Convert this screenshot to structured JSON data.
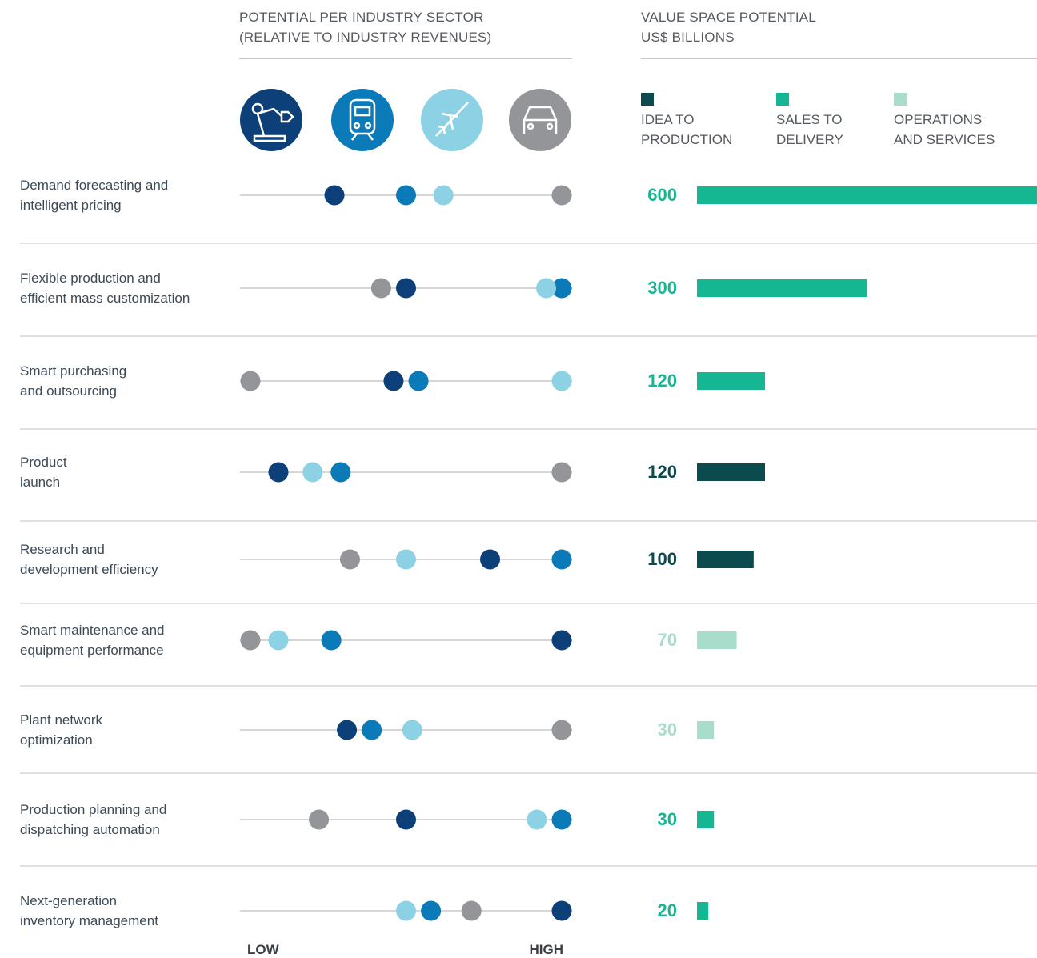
{
  "chart_data": [
    {
      "type": "dot",
      "title": "POTENTIAL PER INDUSTRY SECTOR\n(RELATIVE TO INDUSTRY REVENUES)",
      "categories": [
        "Demand forecasting and\nintelligent pricing",
        "Flexible production and\nefficient mass customization",
        "Smart purchasing\nand outsourcing",
        "Product\nlaunch",
        "Research and\ndevelopment efficiency",
        "Smart maintenance and\nequipment performance",
        "Plant network\noptimization",
        "Production planning and\ndispatching automation",
        "Next-generation\ninventory management"
      ],
      "series": [
        {
          "color": "#0d3f78",
          "values": [
            27,
            50,
            46,
            9,
            77,
            100,
            31,
            50,
            100
          ]
        },
        {
          "color": "#0a7ab8",
          "values": [
            50,
            100,
            54,
            29,
            100,
            26,
            39,
            100,
            58
          ]
        },
        {
          "color": "#8dd1e4",
          "values": [
            62,
            95,
            100,
            20,
            50,
            9,
            52,
            92,
            50
          ]
        },
        {
          "color": "#939598",
          "values": [
            100,
            42,
            0,
            100,
            32,
            0,
            100,
            22,
            71
          ]
        }
      ],
      "xlim": [
        0,
        100
      ],
      "xticks": [
        {
          "value": 0,
          "label": "LOW"
        },
        {
          "value": 100,
          "label": "HIGH"
        }
      ]
    },
    {
      "type": "bar",
      "title": "VALUE SPACE POTENTIAL\nUS$ BILLIONS",
      "series": [
        {
          "name": "IDEA TO\nPRODUCTION",
          "color": "#0b4a4d",
          "values": [
            null,
            null,
            null,
            120,
            100,
            null,
            null,
            null,
            null
          ]
        },
        {
          "name": "SALES TO\nDELIVERY",
          "color": "#14b792",
          "values": [
            600,
            300,
            120,
            null,
            null,
            null,
            null,
            30,
            20
          ]
        },
        {
          "name": "OPERATIONS\nAND SERVICES",
          "color": "#a8dccb",
          "values": [
            null,
            null,
            null,
            null,
            null,
            70,
            30,
            null,
            null
          ]
        }
      ],
      "xlim": [
        0,
        600
      ]
    }
  ]
}
